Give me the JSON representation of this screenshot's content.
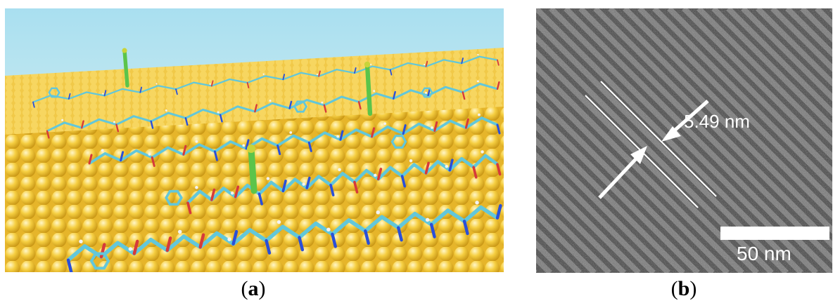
{
  "figure": {
    "panel_a": {
      "caption_open": "(",
      "caption_letter": "a",
      "caption_close": ")",
      "colors": {
        "sky": "#bfe4f0",
        "gold_surface": "#f2c43a",
        "molecule_carbon": "#62c7da",
        "molecule_oxygen": "#d63a3a",
        "molecule_nitrogen": "#2a4fd8",
        "ligand": "#5cc44a"
      }
    },
    "panel_b": {
      "caption_open": "(",
      "caption_letter": "b",
      "caption_close": ")",
      "spacing_label": "5.49 nm",
      "scale_label": "50 nm",
      "colors": {
        "background": "#4a4a4a",
        "fringe": "#8a8a8a",
        "annotation": "#ffffff"
      }
    }
  }
}
